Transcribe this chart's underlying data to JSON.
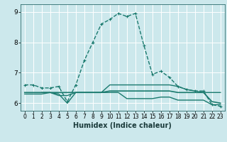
{
  "xlabel": "Humidex (Indice chaleur)",
  "bg_color": "#cce8ec",
  "grid_color": "#ffffff",
  "line_color": "#1a7a6e",
  "x_ticks": [
    0,
    1,
    2,
    3,
    4,
    5,
    6,
    7,
    8,
    9,
    10,
    11,
    12,
    13,
    14,
    15,
    16,
    17,
    18,
    19,
    20,
    21,
    22,
    23
  ],
  "ylim": [
    5.75,
    9.25
  ],
  "xlim": [
    -0.5,
    23.5
  ],
  "yticks": [
    6,
    7,
    8,
    9
  ],
  "series": [
    {
      "x": [
        0,
        1,
        2,
        3,
        4,
        5,
        6,
        7,
        8,
        9,
        10,
        11,
        12,
        13,
        14,
        15,
        16,
        17,
        18,
        19,
        20,
        21,
        22,
        23
      ],
      "y": [
        6.6,
        6.6,
        6.5,
        6.5,
        6.55,
        6.05,
        6.6,
        7.4,
        8.0,
        8.6,
        8.75,
        8.95,
        8.85,
        8.95,
        7.9,
        6.95,
        7.05,
        6.85,
        6.55,
        6.45,
        6.4,
        6.4,
        5.95,
        5.9
      ],
      "marker": "+",
      "ls": "--",
      "lw": 1.0
    },
    {
      "x": [
        0,
        1,
        2,
        3,
        4,
        5,
        6,
        7,
        8,
        9,
        10,
        11,
        12,
        13,
        14,
        15,
        16,
        17,
        18,
        19,
        20,
        21,
        22,
        23
      ],
      "y": [
        6.35,
        6.35,
        6.35,
        6.35,
        6.35,
        6.35,
        6.35,
        6.35,
        6.35,
        6.35,
        6.4,
        6.4,
        6.4,
        6.4,
        6.4,
        6.4,
        6.4,
        6.4,
        6.35,
        6.35,
        6.35,
        6.35,
        6.05,
        6.0
      ],
      "marker": null,
      "ls": "-",
      "lw": 1.2
    },
    {
      "x": [
        0,
        1,
        2,
        3,
        4,
        5,
        6,
        7,
        8,
        9,
        10,
        11,
        12,
        13,
        14,
        15,
        16,
        17,
        18,
        19,
        20,
        21,
        22,
        23
      ],
      "y": [
        6.3,
        6.3,
        6.3,
        6.35,
        6.3,
        6.0,
        6.35,
        6.35,
        6.35,
        6.35,
        6.35,
        6.35,
        6.15,
        6.15,
        6.15,
        6.15,
        6.2,
        6.2,
        6.1,
        6.1,
        6.1,
        6.1,
        5.95,
        5.95
      ],
      "marker": null,
      "ls": "-",
      "lw": 1.0
    },
    {
      "x": [
        2,
        3,
        4,
        5,
        6,
        7,
        8,
        9,
        10,
        11,
        12,
        13,
        14,
        15,
        16,
        17,
        18,
        19,
        20,
        21,
        22,
        23
      ],
      "y": [
        6.35,
        6.35,
        6.25,
        6.25,
        6.35,
        6.35,
        6.35,
        6.35,
        6.6,
        6.6,
        6.6,
        6.6,
        6.6,
        6.6,
        6.6,
        6.6,
        6.55,
        6.45,
        6.4,
        6.35,
        6.35,
        6.35
      ],
      "marker": null,
      "ls": "-",
      "lw": 1.0
    }
  ],
  "figsize": [
    3.2,
    2.0
  ],
  "dpi": 100,
  "tick_fontsize": 5.5,
  "xlabel_fontsize": 7
}
